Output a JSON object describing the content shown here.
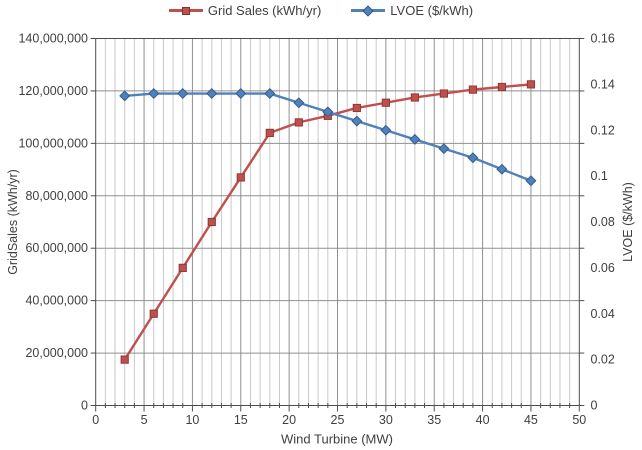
{
  "legend": {
    "items": [
      {
        "label": "Grid Sales (kWh/yr)",
        "color": "#c0504d",
        "marker": "square"
      },
      {
        "label": "LVOE ($/kWh)",
        "color": "#4f81bd",
        "marker": "diamond"
      }
    ]
  },
  "axes": {
    "x_title": "Wind Turbine (MW)",
    "y_left_title": "GridSales (kWh/yr)",
    "y_right_title": "LVOE ($/kWh)"
  },
  "colors": {
    "grid_minor": "#c9c9c9",
    "grid_major": "#8f8f8f",
    "axis": "#4d4d4d",
    "text": "#3f3f3f"
  },
  "chart_data": {
    "type": "line",
    "x": [
      3,
      6,
      9,
      12,
      15,
      18,
      21,
      24,
      27,
      30,
      33,
      36,
      39,
      42,
      45
    ],
    "series": [
      {
        "name": "Grid Sales (kWh/yr)",
        "axis": "left",
        "color": "#c0504d",
        "marker_border": "#8c3836",
        "marker": "square",
        "values": [
          17500000,
          35000000,
          52500000,
          70000000,
          87000000,
          104000000,
          108000000,
          110500000,
          113500000,
          115500000,
          117500000,
          119000000,
          120500000,
          121500000,
          122500000
        ]
      },
      {
        "name": "LVOE ($/kWh)",
        "axis": "right",
        "color": "#4f81bd",
        "marker_border": "#355d8c",
        "marker": "diamond",
        "values": [
          0.135,
          0.136,
          0.136,
          0.136,
          0.136,
          0.136,
          0.132,
          0.128,
          0.124,
          0.12,
          0.116,
          0.112,
          0.108,
          0.103,
          0.098
        ]
      }
    ],
    "title": "",
    "xlabel": "Wind Turbine (MW)",
    "ylabel_left": "GridSales (kWh/yr)",
    "ylabel_right": "LVOE ($/kWh)",
    "xlim": [
      0,
      50
    ],
    "ylim_left": [
      0,
      140000000
    ],
    "ylim_right": [
      0,
      0.16
    ],
    "x_tick_step": 5,
    "x_minor_step": 1,
    "x_tick_labels": [
      "0",
      "5",
      "10",
      "15",
      "20",
      "25",
      "30",
      "35",
      "40",
      "45",
      "50"
    ],
    "y_left_tick_labels": [
      "0",
      "20,000,000",
      "40,000,000",
      "60,000,000",
      "80,000,000",
      "100,000,000",
      "120,000,000",
      "140,000,000"
    ],
    "y_right_tick_labels": [
      "0",
      "0.02",
      "0.04",
      "0.06",
      "0.08",
      "0.1",
      "0.12",
      "0.14",
      "0.16"
    ],
    "grid": true,
    "legend_position": "top"
  }
}
